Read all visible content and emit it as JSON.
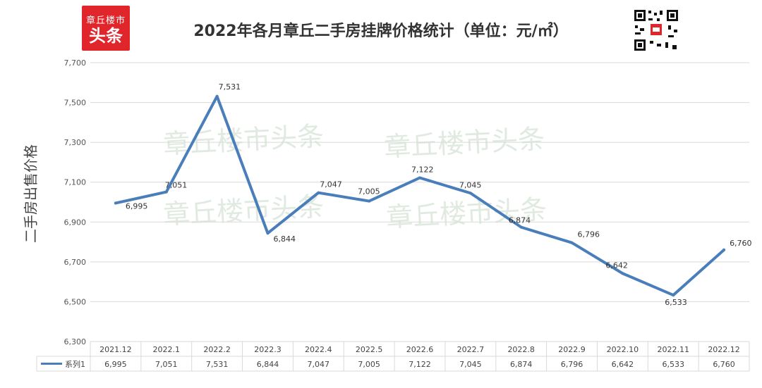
{
  "logo": {
    "line1": "章丘楼市",
    "line2": "头条"
  },
  "title": "2022年各月章丘二手房挂牌价格统计（单位：元/㎡）",
  "watermark": "章丘楼市头条",
  "qr_icon": "qr-code-icon",
  "colors": {
    "line": "#4a7ebb",
    "grid": "#d9d9d9",
    "brand": "#e0262b"
  },
  "chart_data": {
    "type": "line",
    "title": "2022年各月章丘二手房挂牌价格统计（单位：元/㎡）",
    "ylabel": "二手房出售价格",
    "xlabel": "",
    "categories": [
      "2021.12",
      "2022.1",
      "2022.2",
      "2022.3",
      "2022.4",
      "2022.5",
      "2022.6",
      "2022.7",
      "2022.8",
      "2022.9",
      "2022.10",
      "2022.11",
      "2022.12"
    ],
    "series": [
      {
        "name": "系列1",
        "values": [
          6995,
          7051,
          7531,
          6844,
          7047,
          7005,
          7122,
          7045,
          6874,
          6796,
          6642,
          6533,
          6760
        ]
      }
    ],
    "value_labels": [
      "6,995",
      "7,051",
      "7,531",
      "6,844",
      "7,047",
      "7,005",
      "7,122",
      "7,045",
      "6,874",
      "6,796",
      "6,642",
      "6,533",
      "6,760"
    ],
    "ylim": [
      6300,
      7700
    ],
    "yticks": [
      6300,
      6500,
      6700,
      6900,
      7100,
      7300,
      7500,
      7700
    ],
    "ytick_labels": [
      "6,300",
      "6,500",
      "6,700",
      "6,900",
      "7,100",
      "7,300",
      "7,500",
      "7,700"
    ],
    "grid": true,
    "legend": "data-table"
  }
}
